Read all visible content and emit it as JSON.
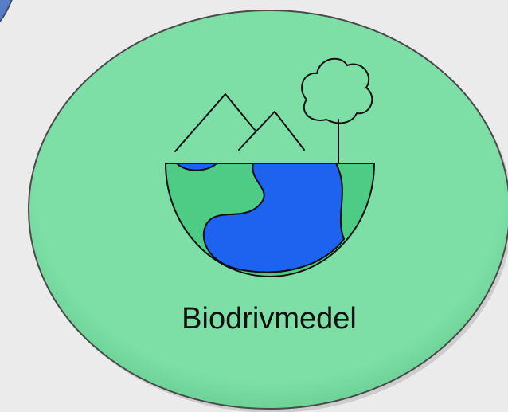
{
  "label": "Biodrivmedel"
}
